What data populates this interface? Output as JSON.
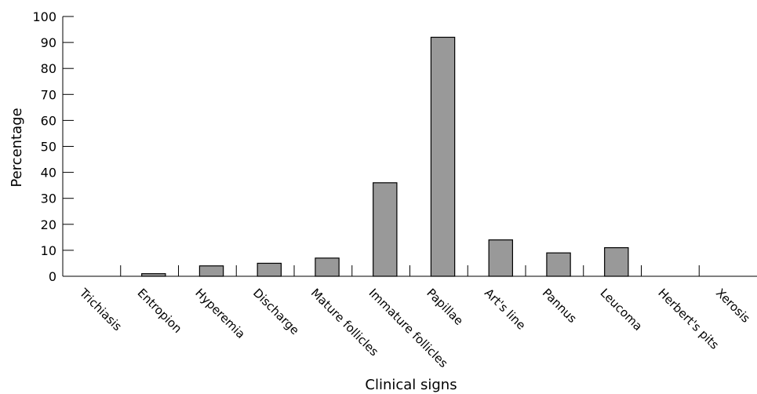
{
  "chart_data": {
    "type": "bar",
    "title": "",
    "xlabel": "Clinical signs",
    "ylabel": "Percentage",
    "ylim": [
      0,
      100
    ],
    "yticks": [
      "0",
      "10",
      "20",
      "30",
      "40",
      "50",
      "60",
      "70",
      "80",
      "90",
      "100"
    ],
    "categories": [
      "Trichiasis",
      "Entropion",
      "Hyperemia",
      "Discharge",
      "Mature follicles",
      "Immature follicles",
      "Papillae",
      "Art's line",
      "Pannus",
      "Leucoma",
      "Herbert's pits",
      "Xerosis"
    ],
    "values": [
      0,
      1,
      4,
      5,
      7,
      36,
      92,
      14,
      9,
      11,
      0,
      0
    ],
    "bar_color": "#999999",
    "grid": false,
    "legend": "none"
  }
}
